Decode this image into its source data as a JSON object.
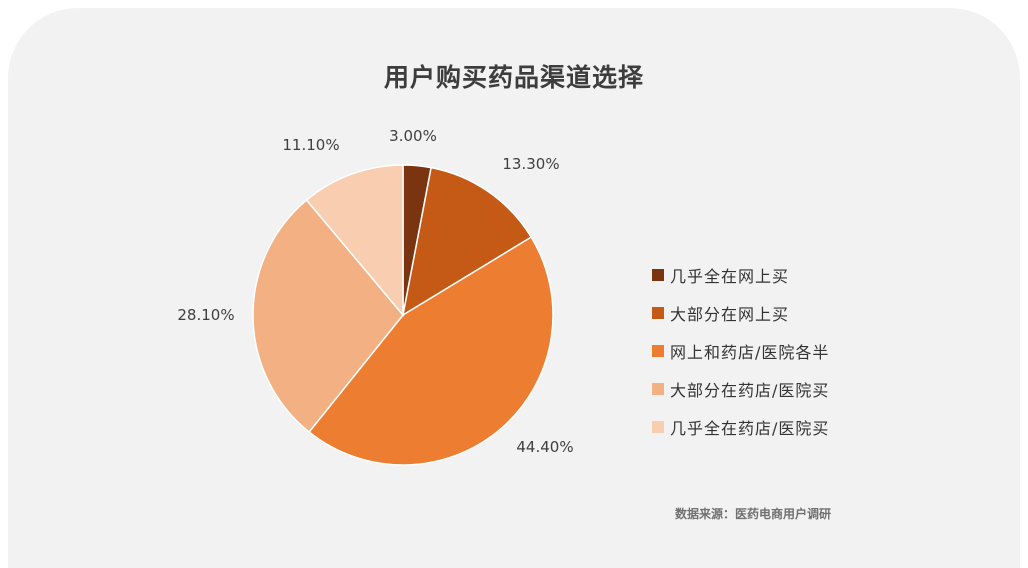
{
  "chart_data": {
    "type": "pie",
    "title": "用户购买药品渠道选择",
    "categories": [
      "几乎全在网上买",
      "大部分在网上买",
      "网上和药店/医院各半",
      "大部分在药店/医院买",
      "几乎全在药店/医院买"
    ],
    "values": [
      3.0,
      13.3,
      44.4,
      28.1,
      11.1
    ],
    "labels": [
      "3.00%",
      "13.30%",
      "44.40%",
      "28.10%",
      "11.10%"
    ],
    "colors": [
      "#7a3510",
      "#c55a16",
      "#ed7d31",
      "#f3b083",
      "#f8cdb0"
    ],
    "legend_position": "right"
  },
  "source": "数据来源：医药电商用户调研"
}
